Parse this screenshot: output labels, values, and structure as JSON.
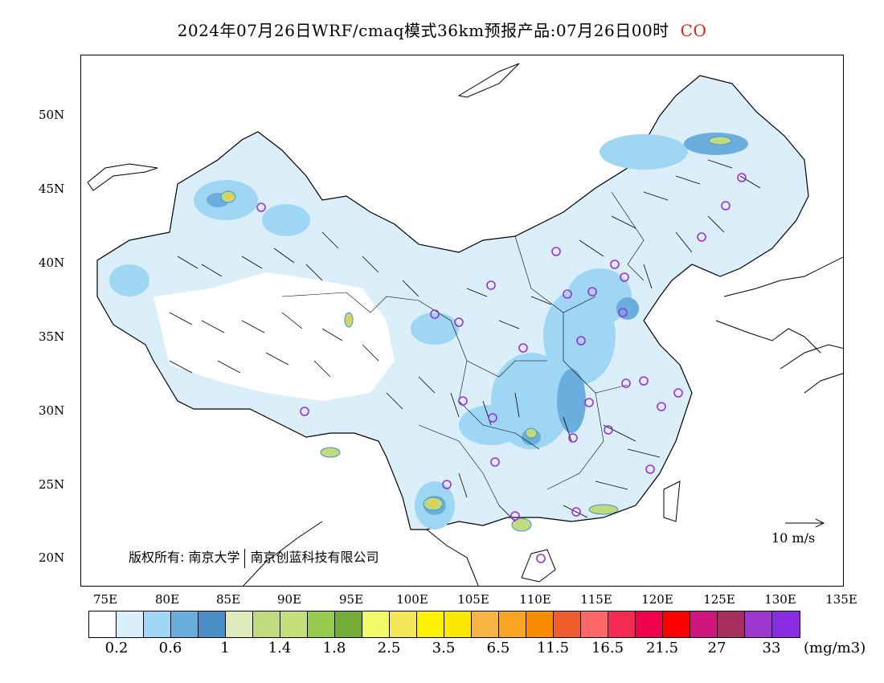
{
  "header": {
    "title": "2024年07月26日WRF/cmaq模式36km预报产品:07月26日00时",
    "species": "CO"
  },
  "map": {
    "lat_labels": [
      "50N",
      "45N",
      "40N",
      "35N",
      "30N",
      "25N",
      "20N"
    ],
    "lon_labels": [
      "75E",
      "80E",
      "85E",
      "90E",
      "95E",
      "100E",
      "105E",
      "110E",
      "115E",
      "120E",
      "125E",
      "130E",
      "135E"
    ],
    "copyright_left": "版权所有: 南京大学",
    "copyright_right": "南京创蓝科技有限公司",
    "wind_reference": "10 m/s",
    "colors": {
      "light_blue": "#dbeffb",
      "mid_blue": "#9fd6f3",
      "blue": "#6aaede",
      "dark_blue": "#4a8fc8",
      "station": "#9b2fe0"
    }
  },
  "legend": {
    "colors": [
      "#ffffff",
      "#dbeffb",
      "#9fd6f3",
      "#6aaede",
      "#4a8fc8",
      "#deebbd",
      "#bedb7d",
      "#c5e07a",
      "#95cc4d",
      "#73ad37",
      "#f3fa69",
      "#f5e65a",
      "#fdf300",
      "#fde600",
      "#f8b442",
      "#f8a523",
      "#f88a00",
      "#ef5d2c",
      "#fe6768",
      "#f52a53",
      "#f0004a",
      "#ff0000",
      "#cf1580",
      "#a72e5d",
      "#9e35cf",
      "#8a2be2"
    ],
    "labels": [
      "0.2",
      "0.6",
      "1",
      "1.4",
      "1.8",
      "2.5",
      "3.5",
      "6.5",
      "11.5",
      "16.5",
      "21.5",
      "27",
      "33"
    ],
    "unit": "(mg/m3)"
  }
}
